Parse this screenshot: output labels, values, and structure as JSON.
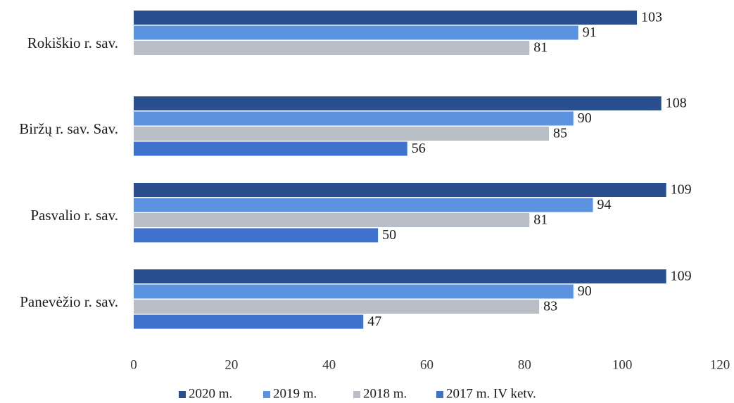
{
  "chart_data": {
    "type": "bar",
    "orientation": "horizontal",
    "title": "",
    "xlabel": "",
    "ylabel": "",
    "xlim": [
      0,
      120
    ],
    "x_ticks": [
      0,
      20,
      40,
      60,
      80,
      100,
      120
    ],
    "grid": false,
    "legend_position": "bottom",
    "categories": [
      "Rokiškio r. sav.",
      "Biržų r. sav. Sav.",
      "Pasvalio r. sav.",
      "Panevėžio r. sav."
    ],
    "series": [
      {
        "name": "2020 m.",
        "color": "#2a4f8f",
        "values": [
          103,
          108,
          109,
          109
        ]
      },
      {
        "name": "2019 m.",
        "color": "#5b93e0",
        "values": [
          91,
          90,
          94,
          90
        ]
      },
      {
        "name": "2018 m.",
        "color": "#b9bec7",
        "values": [
          81,
          85,
          81,
          83
        ]
      },
      {
        "name": "2017 m. IV ketv.",
        "color": "#3f72cc",
        "values": [
          null,
          56,
          50,
          47
        ]
      }
    ]
  }
}
